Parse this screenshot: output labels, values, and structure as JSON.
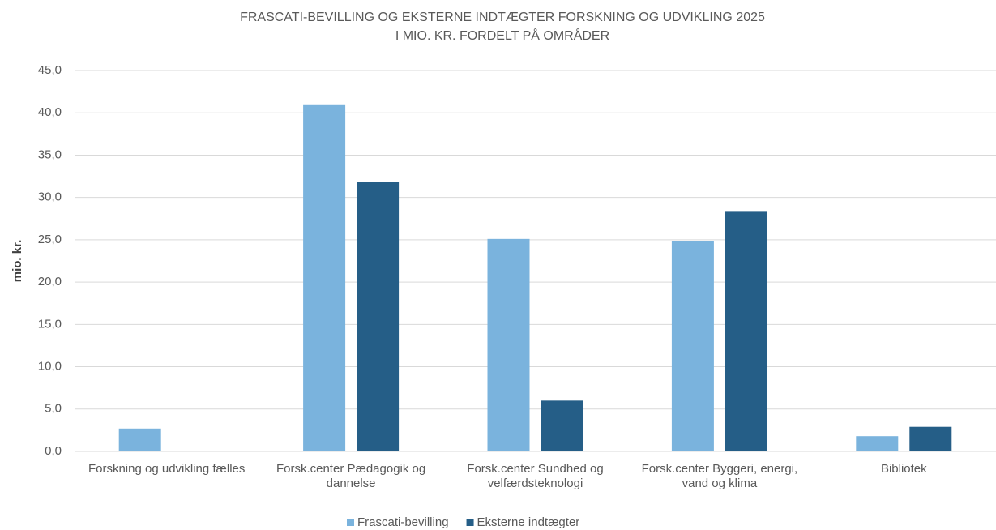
{
  "chart_data": {
    "type": "bar",
    "title": "FRASCATI-BEVILLING  OG EKSTERNE INDTÆGTER FORSKNING OG UDVIKLING  2025",
    "subtitle": "I MIO. KR. FORDELT PÅ OMRÅDER",
    "y_label": "mio. kr.",
    "categories": [
      "Forskning og udvikling fælles",
      "Forsk.center Pædagogik og dannelse",
      "Forsk.center Sundhed og velfærdsteknologi",
      "Forsk.center Byggeri, energi, vand og klima",
      "Bibliotek"
    ],
    "series": [
      {
        "name": "Frascati-bevilling",
        "color": "#7ab3dd",
        "values": [
          2.7,
          41.0,
          25.1,
          24.8,
          1.8
        ]
      },
      {
        "name": "Eksterne indtægter",
        "color": "#255e87",
        "values": [
          null,
          31.8,
          6.0,
          28.4,
          2.9
        ]
      }
    ],
    "ylim": [
      0,
      45
    ],
    "yticks": [
      {
        "value": 0,
        "label": "0,0"
      },
      {
        "value": 5,
        "label": "5,0"
      },
      {
        "value": 10,
        "label": "10,0"
      },
      {
        "value": 15,
        "label": "15,0"
      },
      {
        "value": 20,
        "label": "20,0"
      },
      {
        "value": 25,
        "label": "25,0"
      },
      {
        "value": 30,
        "label": "30,0"
      },
      {
        "value": 35,
        "label": "35,0"
      },
      {
        "value": 40,
        "label": "40,0"
      },
      {
        "value": 45,
        "label": "45,0"
      }
    ],
    "grid": true,
    "legend": "bottom"
  }
}
